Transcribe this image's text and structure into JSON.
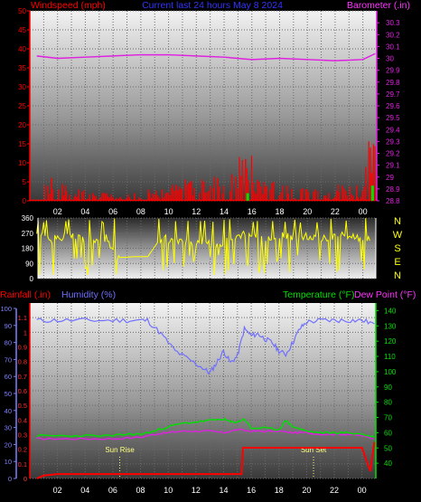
{
  "header": {
    "left_label": "Windspeed (mph)",
    "center_label": "Current last 24 hours May 8 2024",
    "right_label": "Barometer (.in)"
  },
  "colors": {
    "wind": "#ff0000",
    "gust": "#00e000",
    "barometer": "#e020e0",
    "direction": "#ffff00",
    "humidity": "#7070ff",
    "rainfall": "#ff0000",
    "temperature": "#00e000",
    "dewpoint": "#e020e0",
    "sun_marker": "#ffff80",
    "grid": "#6a6a6a"
  },
  "x_ticks": [
    "02",
    "04",
    "06",
    "08",
    "10",
    "12",
    "14",
    "16",
    "18",
    "20",
    "22",
    "00"
  ],
  "chart_data": [
    {
      "type": "bar",
      "title": "Current last 24 hours May 8 2024",
      "xlabel": "",
      "ylabel": "Windspeed (mph)",
      "ylim": [
        0,
        50
      ],
      "y_ticks": [
        "0",
        "5",
        "10",
        "15",
        "20",
        "25",
        "30",
        "35",
        "40",
        "45",
        "50"
      ],
      "y2label": "Barometer (.in)",
      "y2lim": [
        28.8,
        30.4
      ],
      "y2_ticks": [
        "28.8",
        "28.9",
        "29",
        "29.1",
        "29.2",
        "29.3",
        "29.4",
        "29.5",
        "29.6",
        "29.7",
        "29.8",
        "29.9",
        "30",
        "30.1",
        "30.2",
        "30.3"
      ],
      "wind": {
        "x": [
          1.5,
          2.5,
          3.5,
          4.5,
          5.5,
          6.5,
          7.5,
          8.5,
          9.5,
          10.5,
          11.5,
          12.5,
          13.5,
          14.5,
          15.5,
          16.5,
          17.5,
          18.5,
          19.5,
          20.5,
          21.5,
          22.5,
          23.5,
          24.5
        ],
        "values": [
          6,
          4,
          3,
          2,
          2,
          1,
          2,
          3,
          3,
          4,
          5,
          5,
          6,
          7,
          11,
          5,
          5,
          4,
          3,
          3,
          2,
          4,
          4,
          14
        ]
      },
      "gust": {
        "x": [
          15.7,
          24.7
        ],
        "values": [
          1,
          2
        ]
      },
      "barometer": {
        "x": [
          0.5,
          2,
          4,
          6,
          8,
          10,
          12,
          14,
          16,
          18,
          20,
          22,
          24,
          24.9
        ],
        "values": [
          30.02,
          30.0,
          30.01,
          30.02,
          30.03,
          30.03,
          30.02,
          30.01,
          29.99,
          30.0,
          29.99,
          29.98,
          29.99,
          30.04
        ]
      }
    },
    {
      "type": "line",
      "ylabel": "",
      "ylim": [
        0,
        360
      ],
      "y_ticks": [
        "0",
        "90",
        "180",
        "270",
        "360"
      ],
      "direction_labels": [
        "N",
        "W",
        "S",
        "E",
        "N"
      ],
      "series": [
        {
          "x": [
            0.5,
            1.5,
            2.5,
            3.5,
            4.5,
            5.5,
            6.5,
            7.5,
            8.5,
            9.5,
            10.5,
            11.5,
            12.5,
            13.5,
            14.5,
            15.5,
            16.5,
            17.5,
            18.5,
            19.5,
            20.5,
            21.5,
            22.5,
            23.5,
            24.5
          ],
          "values": [
            260,
            230,
            245,
            250,
            200,
            240,
            125,
            130,
            130,
            250,
            220,
            210,
            230,
            200,
            230,
            260,
            250,
            240,
            255,
            250,
            240,
            245,
            255,
            250,
            225
          ]
        }
      ]
    },
    {
      "type": "line",
      "ylabel": "Rainfall (.in)",
      "ylim": [
        0,
        1.2
      ],
      "y_ticks": [
        "0",
        "0.1",
        "0.2",
        "0.3",
        "0.4",
        "0.5",
        "0.6",
        "0.7",
        "0.8",
        "0.9",
        "1",
        "1.1"
      ],
      "humidity_label": "Humidity (%)",
      "humidity_ylim": [
        0,
        100
      ],
      "humidity_ticks": [
        "0",
        "10",
        "20",
        "30",
        "40",
        "50",
        "60",
        "70",
        "80",
        "90",
        "100"
      ],
      "temp_label": "Temperature (°F)",
      "dew_label": "Dew Point (°F)",
      "temp_ylim": [
        30,
        145
      ],
      "temp_ticks": [
        "40",
        "50",
        "60",
        "70",
        "80",
        "90",
        "100",
        "110",
        "120",
        "130",
        "140"
      ],
      "annotations": [
        {
          "label": "Sun Rise",
          "x": 6.5
        },
        {
          "label": "Sun Set",
          "x": 20.5
        }
      ],
      "series": [
        {
          "name": "Humidity (%)",
          "x": [
            0.5,
            2,
            4,
            6,
            7.5,
            8.5,
            9.5,
            10.5,
            11.5,
            12.5,
            13,
            13.5,
            14,
            14.5,
            15,
            15.5,
            16,
            16.5,
            17,
            17.5,
            18,
            18.5,
            19,
            19.5,
            20,
            21,
            22,
            23,
            24,
            24.9
          ],
          "values": [
            93,
            93,
            93,
            93,
            93,
            93,
            85,
            75,
            70,
            65,
            62,
            68,
            75,
            68,
            72,
            88,
            84,
            85,
            82,
            80,
            75,
            73,
            80,
            88,
            92,
            93,
            93,
            93,
            93,
            91
          ]
        },
        {
          "name": "Temperature (°F)",
          "x": [
            0.5,
            2,
            4,
            6,
            7,
            8,
            9,
            10,
            11,
            12,
            13,
            14,
            14.5,
            15,
            15.5,
            16,
            17,
            18,
            18.5,
            19,
            20,
            21,
            22,
            23,
            24,
            24.9
          ],
          "values": [
            58,
            58,
            58,
            58,
            59,
            59,
            61,
            64,
            66,
            67,
            68,
            69,
            67,
            67,
            69,
            63,
            63,
            62,
            68,
            64,
            61,
            60,
            60,
            60,
            59,
            57
          ]
        },
        {
          "name": "Dew Point (°F)",
          "x": [
            0.5,
            2,
            4,
            6,
            8,
            9,
            10,
            11,
            12,
            13,
            14,
            15,
            16,
            17,
            18,
            19,
            20,
            21,
            22,
            23,
            24,
            24.9
          ],
          "values": [
            56,
            56,
            56,
            56,
            57,
            59,
            60,
            61,
            61,
            61,
            60,
            62,
            61,
            61,
            61,
            60,
            60,
            59,
            59,
            59,
            58,
            56
          ]
        },
        {
          "name": "Rainfall (.in)",
          "x": [
            0.5,
            1,
            2,
            4,
            6,
            8,
            10,
            12,
            14,
            15.3,
            15.4,
            16,
            18,
            20,
            22,
            24,
            24.6,
            24.9
          ],
          "values": [
            0,
            0.02,
            0.03,
            0.03,
            0.03,
            0.03,
            0.03,
            0.03,
            0.03,
            0.03,
            0.21,
            0.21,
            0.21,
            0.21,
            0.21,
            0.21,
            0.05,
            0.25
          ]
        }
      ]
    }
  ]
}
